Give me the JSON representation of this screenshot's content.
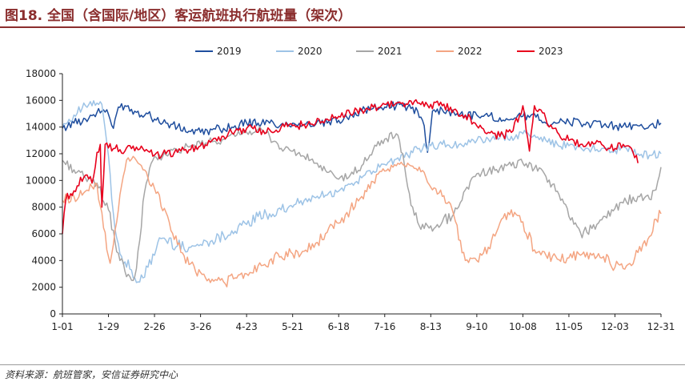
{
  "page": {
    "title": "图18. 全国（含国际/地区）客运航班执行航班量（架次）",
    "source": "资料来源：航班管家，安信证券研究中心"
  },
  "colors": {
    "title": "#8B2E2E",
    "axis": "#222222"
  },
  "chart_data": {
    "type": "line",
    "title": "",
    "xlabel": "",
    "ylabel": "",
    "ylim": [
      0,
      18000
    ],
    "yticks": [
      0,
      2000,
      4000,
      6000,
      8000,
      10000,
      12000,
      14000,
      16000,
      18000
    ],
    "x_ticks": [
      "1-01",
      "1-29",
      "2-26",
      "3-26",
      "4-23",
      "5-21",
      "6-18",
      "7-16",
      "8-13",
      "9-10",
      "10-08",
      "11-05",
      "12-03",
      "12-31"
    ],
    "x_tick_days": [
      0,
      28,
      56,
      84,
      112,
      140,
      168,
      196,
      224,
      252,
      280,
      308,
      336,
      364
    ],
    "x_range_days": [
      0,
      364
    ],
    "grid": false,
    "legend": "top",
    "series": [
      {
        "name": "2019",
        "color": "#1F4E9E",
        "points": [
          [
            0,
            13900
          ],
          [
            7,
            14300
          ],
          [
            14,
            14600
          ],
          [
            21,
            15100
          ],
          [
            27,
            15300
          ],
          [
            31,
            13900
          ],
          [
            34,
            15500
          ],
          [
            38,
            15600
          ],
          [
            45,
            15100
          ],
          [
            52,
            15000
          ],
          [
            56,
            14600
          ],
          [
            63,
            14300
          ],
          [
            70,
            14000
          ],
          [
            77,
            13700
          ],
          [
            84,
            13600
          ],
          [
            91,
            13800
          ],
          [
            98,
            13900
          ],
          [
            105,
            14100
          ],
          [
            112,
            14300
          ],
          [
            119,
            14300
          ],
          [
            126,
            14300
          ],
          [
            133,
            14200
          ],
          [
            140,
            14300
          ],
          [
            147,
            14200
          ],
          [
            154,
            14200
          ],
          [
            161,
            14300
          ],
          [
            168,
            14500
          ],
          [
            175,
            14900
          ],
          [
            182,
            15200
          ],
          [
            189,
            15400
          ],
          [
            196,
            15500
          ],
          [
            203,
            15600
          ],
          [
            210,
            15500
          ],
          [
            216,
            15200
          ],
          [
            220,
            14100
          ],
          [
            222,
            12100
          ],
          [
            225,
            15200
          ],
          [
            231,
            15300
          ],
          [
            238,
            15100
          ],
          [
            245,
            14900
          ],
          [
            252,
            14900
          ],
          [
            259,
            14800
          ],
          [
            266,
            14700
          ],
          [
            273,
            14600
          ],
          [
            280,
            14800
          ],
          [
            287,
            15000
          ],
          [
            294,
            14300
          ],
          [
            301,
            14300
          ],
          [
            308,
            14400
          ],
          [
            315,
            14300
          ],
          [
            322,
            14200
          ],
          [
            329,
            14100
          ],
          [
            336,
            14100
          ],
          [
            343,
            14000
          ],
          [
            350,
            14100
          ],
          [
            357,
            14100
          ],
          [
            364,
            14300
          ]
        ]
      },
      {
        "name": "2020",
        "color": "#9DC3E6",
        "points": [
          [
            0,
            14100
          ],
          [
            7,
            14900
          ],
          [
            14,
            15600
          ],
          [
            21,
            15800
          ],
          [
            24,
            15700
          ],
          [
            27,
            12800
          ],
          [
            29,
            10500
          ],
          [
            31,
            7500
          ],
          [
            33,
            5700
          ],
          [
            35,
            4500
          ],
          [
            38,
            3900
          ],
          [
            42,
            3300
          ],
          [
            44,
            2700
          ],
          [
            46,
            2400
          ],
          [
            49,
            2700
          ],
          [
            52,
            3500
          ],
          [
            56,
            4400
          ],
          [
            59,
            5700
          ],
          [
            63,
            5500
          ],
          [
            70,
            5100
          ],
          [
            77,
            5000
          ],
          [
            84,
            5200
          ],
          [
            91,
            5500
          ],
          [
            98,
            5900
          ],
          [
            105,
            6200
          ],
          [
            112,
            6700
          ],
          [
            119,
            7300
          ],
          [
            126,
            7500
          ],
          [
            133,
            7800
          ],
          [
            140,
            8000
          ],
          [
            147,
            8500
          ],
          [
            154,
            8700
          ],
          [
            161,
            8900
          ],
          [
            168,
            9200
          ],
          [
            175,
            9700
          ],
          [
            182,
            10200
          ],
          [
            189,
            10700
          ],
          [
            196,
            11200
          ],
          [
            203,
            11600
          ],
          [
            210,
            11900
          ],
          [
            217,
            12400
          ],
          [
            224,
            12600
          ],
          [
            231,
            12700
          ],
          [
            238,
            12600
          ],
          [
            245,
            12800
          ],
          [
            252,
            13000
          ],
          [
            259,
            13100
          ],
          [
            266,
            13200
          ],
          [
            273,
            13300
          ],
          [
            280,
            13500
          ],
          [
            287,
            13400
          ],
          [
            294,
            13000
          ],
          [
            301,
            12700
          ],
          [
            308,
            12600
          ],
          [
            315,
            12500
          ],
          [
            322,
            12400
          ],
          [
            329,
            12400
          ],
          [
            336,
            12300
          ],
          [
            343,
            12400
          ],
          [
            350,
            12000
          ],
          [
            357,
            11900
          ],
          [
            364,
            12000
          ]
        ]
      },
      {
        "name": "2021",
        "color": "#A6A6A6",
        "points": [
          [
            0,
            11500
          ],
          [
            7,
            10800
          ],
          [
            14,
            10200
          ],
          [
            21,
            9800
          ],
          [
            28,
            7800
          ],
          [
            32,
            5400
          ],
          [
            35,
            4000
          ],
          [
            38,
            3200
          ],
          [
            41,
            2800
          ],
          [
            43,
            2500
          ],
          [
            45,
            3400
          ],
          [
            47,
            5500
          ],
          [
            49,
            8400
          ],
          [
            51,
            9800
          ],
          [
            53,
            10900
          ],
          [
            56,
            11800
          ],
          [
            63,
            11900
          ],
          [
            70,
            12300
          ],
          [
            77,
            12500
          ],
          [
            84,
            12700
          ],
          [
            91,
            12900
          ],
          [
            98,
            13100
          ],
          [
            105,
            13300
          ],
          [
            112,
            13600
          ],
          [
            119,
            13800
          ],
          [
            126,
            13300
          ],
          [
            133,
            12400
          ],
          [
            140,
            12200
          ],
          [
            147,
            11800
          ],
          [
            154,
            11300
          ],
          [
            161,
            10600
          ],
          [
            168,
            10100
          ],
          [
            175,
            10400
          ],
          [
            182,
            11100
          ],
          [
            189,
            12300
          ],
          [
            196,
            13100
          ],
          [
            203,
            13500
          ],
          [
            207,
            12000
          ],
          [
            210,
            9500
          ],
          [
            214,
            7400
          ],
          [
            217,
            6600
          ],
          [
            220,
            6400
          ],
          [
            224,
            6600
          ],
          [
            231,
            6900
          ],
          [
            238,
            7500
          ],
          [
            245,
            9300
          ],
          [
            252,
            10500
          ],
          [
            259,
            10700
          ],
          [
            266,
            10900
          ],
          [
            273,
            11100
          ],
          [
            280,
            11300
          ],
          [
            287,
            10900
          ],
          [
            294,
            10300
          ],
          [
            301,
            9200
          ],
          [
            308,
            7300
          ],
          [
            315,
            6100
          ],
          [
            322,
            6400
          ],
          [
            329,
            7300
          ],
          [
            336,
            7900
          ],
          [
            343,
            8400
          ],
          [
            350,
            8800
          ],
          [
            357,
            8600
          ],
          [
            361,
            9300
          ],
          [
            364,
            11000
          ]
        ]
      },
      {
        "name": "2022",
        "color": "#F4A582",
        "points": [
          [
            0,
            8500
          ],
          [
            7,
            8800
          ],
          [
            14,
            9200
          ],
          [
            21,
            9700
          ],
          [
            24,
            7600
          ],
          [
            27,
            4800
          ],
          [
            29,
            3800
          ],
          [
            31,
            5200
          ],
          [
            34,
            7800
          ],
          [
            37,
            10300
          ],
          [
            40,
            11700
          ],
          [
            43,
            11800
          ],
          [
            46,
            11300
          ],
          [
            49,
            10800
          ],
          [
            52,
            10200
          ],
          [
            56,
            9400
          ],
          [
            63,
            7600
          ],
          [
            70,
            5200
          ],
          [
            77,
            3700
          ],
          [
            84,
            3100
          ],
          [
            91,
            2600
          ],
          [
            98,
            2400
          ],
          [
            105,
            2700
          ],
          [
            112,
            3000
          ],
          [
            119,
            3600
          ],
          [
            126,
            4000
          ],
          [
            133,
            4300
          ],
          [
            140,
            4500
          ],
          [
            147,
            4700
          ],
          [
            154,
            5300
          ],
          [
            161,
            6100
          ],
          [
            168,
            6800
          ],
          [
            175,
            7800
          ],
          [
            182,
            8800
          ],
          [
            189,
            9900
          ],
          [
            196,
            10700
          ],
          [
            203,
            11100
          ],
          [
            210,
            11300
          ],
          [
            214,
            10900
          ],
          [
            217,
            11000
          ],
          [
            220,
            10600
          ],
          [
            224,
            9500
          ],
          [
            231,
            8800
          ],
          [
            238,
            7400
          ],
          [
            242,
            5500
          ],
          [
            245,
            4000
          ],
          [
            252,
            4000
          ],
          [
            259,
            5000
          ],
          [
            266,
            6800
          ],
          [
            273,
            7800
          ],
          [
            280,
            6900
          ],
          [
            287,
            4800
          ],
          [
            294,
            4400
          ],
          [
            301,
            4100
          ],
          [
            308,
            4200
          ],
          [
            315,
            4400
          ],
          [
            322,
            4400
          ],
          [
            329,
            4300
          ],
          [
            336,
            3500
          ],
          [
            343,
            3600
          ],
          [
            350,
            4600
          ],
          [
            357,
            5800
          ],
          [
            361,
            7100
          ],
          [
            364,
            7500
          ]
        ]
      },
      {
        "name": "2023",
        "color": "#E8001C",
        "points": [
          [
            0,
            6000
          ],
          [
            2,
            8500
          ],
          [
            5,
            9000
          ],
          [
            9,
            9600
          ],
          [
            14,
            10400
          ],
          [
            18,
            9800
          ],
          [
            21,
            12100
          ],
          [
            23,
            12700
          ],
          [
            24,
            8000
          ],
          [
            26,
            12700
          ],
          [
            32,
            12400
          ],
          [
            38,
            12200
          ],
          [
            45,
            12500
          ],
          [
            52,
            12200
          ],
          [
            56,
            11900
          ],
          [
            63,
            12000
          ],
          [
            70,
            12100
          ],
          [
            77,
            12300
          ],
          [
            84,
            12600
          ],
          [
            91,
            13000
          ],
          [
            98,
            13300
          ],
          [
            105,
            13700
          ],
          [
            112,
            13900
          ],
          [
            117,
            14100
          ],
          [
            119,
            13600
          ],
          [
            126,
            13800
          ],
          [
            133,
            14000
          ],
          [
            140,
            14100
          ],
          [
            147,
            14200
          ],
          [
            154,
            14300
          ],
          [
            161,
            14600
          ],
          [
            168,
            14800
          ],
          [
            175,
            15000
          ],
          [
            182,
            15300
          ],
          [
            189,
            15500
          ],
          [
            196,
            15700
          ],
          [
            203,
            15800
          ],
          [
            210,
            15700
          ],
          [
            217,
            15800
          ],
          [
            224,
            15700
          ],
          [
            231,
            15600
          ],
          [
            238,
            15300
          ],
          [
            245,
            14900
          ],
          [
            252,
            14100
          ],
          [
            259,
            13600
          ],
          [
            266,
            13300
          ],
          [
            273,
            13600
          ],
          [
            278,
            14900
          ],
          [
            280,
            15600
          ],
          [
            284,
            12200
          ],
          [
            287,
            15600
          ],
          [
            294,
            14600
          ],
          [
            301,
            13600
          ],
          [
            308,
            13000
          ],
          [
            315,
            12700
          ],
          [
            322,
            12900
          ],
          [
            329,
            12600
          ],
          [
            336,
            12400
          ],
          [
            341,
            12700
          ],
          [
            344,
            12600
          ],
          [
            347,
            12100
          ],
          [
            350,
            11300
          ]
        ]
      }
    ]
  }
}
